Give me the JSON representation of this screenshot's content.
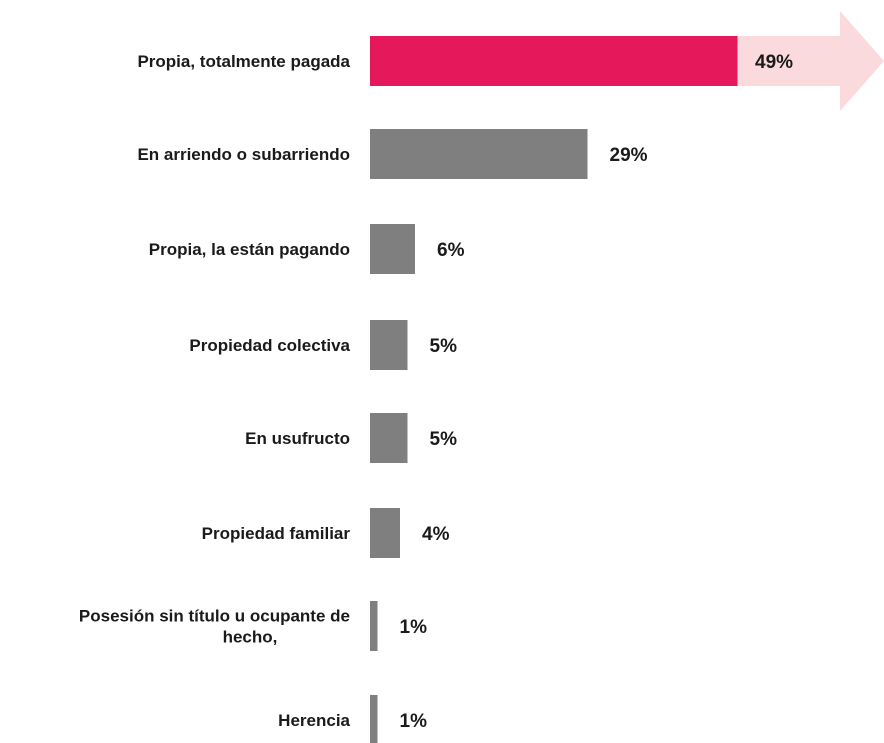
{
  "chart_data": {
    "type": "bar",
    "orientation": "horizontal",
    "title": "",
    "xlabel": "",
    "ylabel": "",
    "categories": [
      "Propia, totalmente pagada",
      "En arriendo o subarriendo",
      "Propia, la están pagando",
      "Propiedad colectiva",
      "En usufructo",
      "Propiedad familiar",
      "Posesión sin título u ocupante de hecho,",
      "Herencia"
    ],
    "values": [
      49,
      29,
      6,
      5,
      5,
      4,
      1,
      1
    ],
    "value_labels": [
      "49%",
      "29%",
      "6%",
      "5%",
      "5%",
      "4%",
      "1%",
      "1%"
    ],
    "unit": "%",
    "xlim": [
      0,
      65
    ],
    "grid": false,
    "legend": "none",
    "highlight_index": 0,
    "colors": {
      "highlight": "#E5185B",
      "bar": "#7F7F7F",
      "arrow": "#FADADD",
      "text": "#1A1A1A"
    }
  }
}
